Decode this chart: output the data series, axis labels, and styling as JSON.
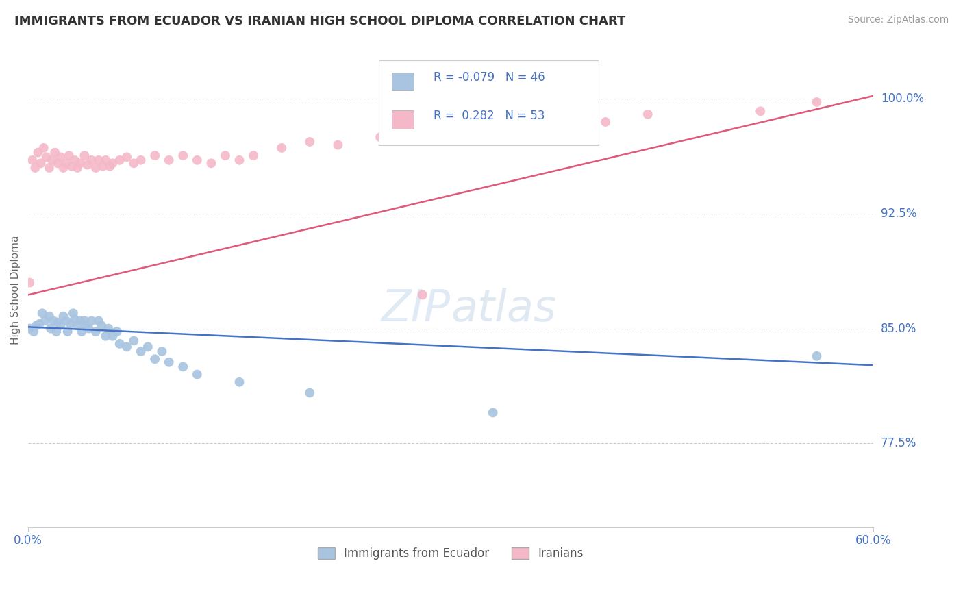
{
  "title": "IMMIGRANTS FROM ECUADOR VS IRANIAN HIGH SCHOOL DIPLOMA CORRELATION CHART",
  "source": "Source: ZipAtlas.com",
  "ylabel": "High School Diploma",
  "xlim": [
    0.0,
    0.6
  ],
  "ylim": [
    0.72,
    1.03
  ],
  "xticks": [
    0.0,
    0.6
  ],
  "xticklabels": [
    "0.0%",
    "60.0%"
  ],
  "yticks": [
    0.775,
    0.85,
    0.925,
    1.0
  ],
  "yticklabels": [
    "77.5%",
    "85.0%",
    "92.5%",
    "100.0%"
  ],
  "legend_labels": [
    "Immigrants from Ecuador",
    "Iranians"
  ],
  "blue_R": "-0.079",
  "blue_N": "46",
  "pink_R": "0.282",
  "pink_N": "53",
  "blue_color": "#a8c4e0",
  "pink_color": "#f4b8c8",
  "blue_line_color": "#4472c4",
  "pink_line_color": "#e05878",
  "background_color": "#ffffff",
  "grid_color": "#cccccc",
  "title_color": "#333333",
  "axis_color": "#4472c4",
  "watermark_color": "#d0dff0",
  "ecuador_x": [
    0.001,
    0.004,
    0.006,
    0.008,
    0.01,
    0.012,
    0.015,
    0.016,
    0.018,
    0.02,
    0.021,
    0.023,
    0.025,
    0.027,
    0.028,
    0.03,
    0.032,
    0.033,
    0.035,
    0.037,
    0.038,
    0.04,
    0.041,
    0.043,
    0.045,
    0.048,
    0.05,
    0.052,
    0.055,
    0.057,
    0.06,
    0.063,
    0.065,
    0.07,
    0.075,
    0.08,
    0.085,
    0.09,
    0.095,
    0.1,
    0.11,
    0.12,
    0.15,
    0.2,
    0.33,
    0.56
  ],
  "ecuador_y": [
    0.85,
    0.848,
    0.852,
    0.853,
    0.86,
    0.855,
    0.858,
    0.85,
    0.855,
    0.848,
    0.854,
    0.852,
    0.858,
    0.855,
    0.848,
    0.853,
    0.86,
    0.856,
    0.852,
    0.855,
    0.848,
    0.855,
    0.852,
    0.85,
    0.855,
    0.848,
    0.855,
    0.852,
    0.845,
    0.85,
    0.845,
    0.848,
    0.84,
    0.838,
    0.842,
    0.835,
    0.838,
    0.83,
    0.835,
    0.828,
    0.825,
    0.82,
    0.815,
    0.808,
    0.795,
    0.832
  ],
  "iran_x": [
    0.001,
    0.003,
    0.005,
    0.007,
    0.009,
    0.011,
    0.013,
    0.015,
    0.017,
    0.019,
    0.021,
    0.023,
    0.025,
    0.027,
    0.029,
    0.031,
    0.033,
    0.035,
    0.037,
    0.04,
    0.042,
    0.045,
    0.048,
    0.05,
    0.053,
    0.055,
    0.058,
    0.06,
    0.065,
    0.07,
    0.075,
    0.08,
    0.09,
    0.1,
    0.11,
    0.12,
    0.13,
    0.14,
    0.15,
    0.16,
    0.18,
    0.2,
    0.22,
    0.25,
    0.28,
    0.3,
    0.32,
    0.35,
    0.38,
    0.41,
    0.44,
    0.52,
    0.56
  ],
  "iran_y": [
    0.88,
    0.96,
    0.955,
    0.965,
    0.958,
    0.968,
    0.962,
    0.955,
    0.96,
    0.965,
    0.958,
    0.962,
    0.955,
    0.958,
    0.963,
    0.956,
    0.96,
    0.955,
    0.958,
    0.963,
    0.957,
    0.96,
    0.955,
    0.96,
    0.956,
    0.96,
    0.956,
    0.958,
    0.96,
    0.962,
    0.958,
    0.96,
    0.963,
    0.96,
    0.963,
    0.96,
    0.958,
    0.963,
    0.96,
    0.963,
    0.968,
    0.972,
    0.97,
    0.975,
    0.872,
    0.977,
    0.975,
    0.98,
    0.985,
    0.985,
    0.99,
    0.992,
    0.998
  ]
}
